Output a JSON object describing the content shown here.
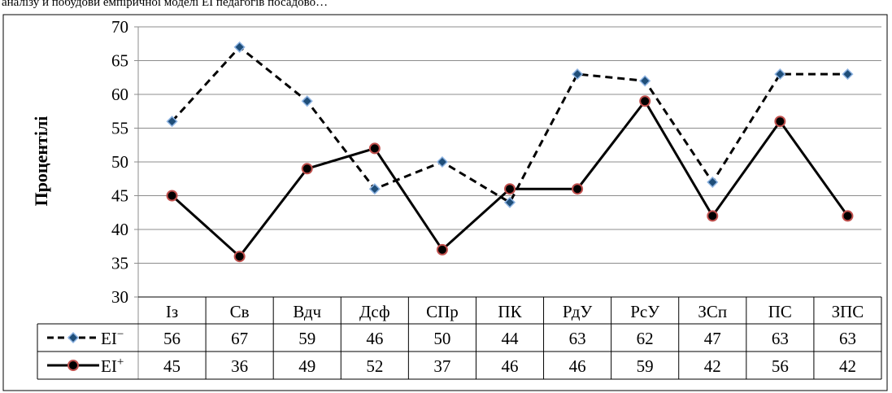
{
  "header_text": "аналізу й побудови емпіричної моделі ЕІ педагогів посадово…",
  "chart_data": {
    "type": "line",
    "categories": [
      "Із",
      "Св",
      "Вдч",
      "Дсф",
      "СПр",
      "ПК",
      "РдУ",
      "РсУ",
      "ЗСп",
      "ПС",
      "ЗПС"
    ],
    "ylabel": "Процентілі",
    "xlabel": "",
    "ylim": [
      30,
      70
    ],
    "yticks": [
      30,
      35,
      40,
      45,
      50,
      55,
      60,
      65,
      70
    ],
    "grid": true,
    "legend_placement": "data-table rows below chart",
    "series": [
      {
        "name": "EI",
        "name_sup": "−",
        "values": [
          56,
          67,
          59,
          46,
          50,
          44,
          63,
          62,
          47,
          63,
          63
        ],
        "line_style": "dashed",
        "marker": "diamond",
        "line_color": "#000000",
        "marker_fill": "#1f4e79",
        "marker_edge": "#8db3e2"
      },
      {
        "name": "EI",
        "name_sup": "+",
        "values": [
          45,
          36,
          49,
          52,
          37,
          46,
          46,
          59,
          42,
          56,
          42
        ],
        "line_style": "solid",
        "marker": "circle",
        "line_color": "#000000",
        "marker_fill": "#000000",
        "marker_edge": "#c0504d"
      }
    ]
  }
}
